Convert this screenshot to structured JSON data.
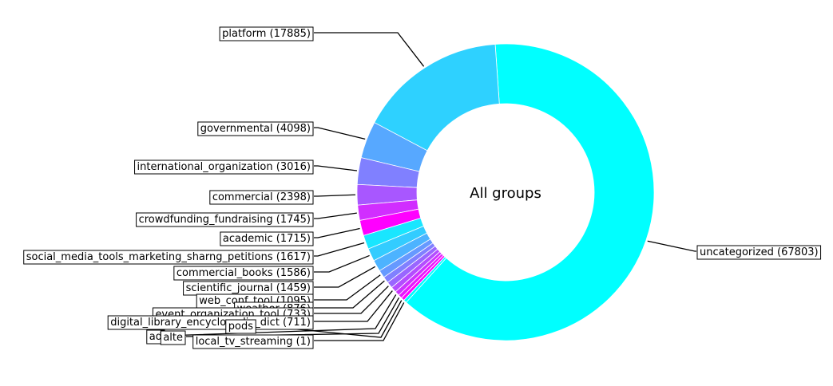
{
  "chart_data": {
    "type": "pie",
    "style": "donut",
    "center_label": "All groups",
    "slices": [
      {
        "label": "uncategorized",
        "value": 67803,
        "color": "#00ffff"
      },
      {
        "label": "platform",
        "value": 17885,
        "color": "#2ed1ff"
      },
      {
        "label": "governmental",
        "value": 4098,
        "color": "#57a8ff"
      },
      {
        "label": "international_organization",
        "value": 3016,
        "color": "#8080ff"
      },
      {
        "label": "commercial",
        "value": 2398,
        "color": "#a857ff"
      },
      {
        "label": "crowdfunding_fundraising",
        "value": 1745,
        "color": "#d12eff"
      },
      {
        "label": "academic",
        "value": 1715,
        "color": "#ff00ff"
      },
      {
        "label": "social_media_tools_marketing_sharng_petitions",
        "value": 1617,
        "color": "#19e6ff"
      },
      {
        "label": "commercial_books",
        "value": 1586,
        "color": "#33ccff"
      },
      {
        "label": "scientific_journal",
        "value": 1459,
        "color": "#4db3ff"
      },
      {
        "label": "web_conf_tool",
        "value": 1095,
        "color": "#6699ff"
      },
      {
        "label": "weather",
        "value": 876,
        "color": "#8080ff"
      },
      {
        "label": "event_organization_tool",
        "value": 733,
        "color": "#9966ff"
      },
      {
        "label": "digital_library_encyclopedia_dict",
        "value": 711,
        "color": "#b34dff"
      },
      {
        "label": "ad",
        "value": null,
        "color": "#cc33ff"
      },
      {
        "label": "alte",
        "value": null,
        "color": "#e619ff"
      },
      {
        "label": "pods",
        "value": null,
        "color": "#ff00ff"
      },
      {
        "label": "local_tv_streaming",
        "value": 1,
        "color": "#00ffff"
      }
    ],
    "label_texts": [
      "uncategorized (67803)",
      "platform (17885)",
      "governmental (4098)",
      "international_organization (3016)",
      "commercial (2398)",
      "crowdfunding_fundraising (1745)",
      "academic (1715)",
      "social_media_tools_marketing_sharng_petitions (1617)",
      "commercial_books (1586)",
      "scientific_journal (1459)",
      "web_conf_tool (1095)",
      "weather (876)",
      "event_organization_tool (733)",
      "digital_library_encyclopedia_dict (711)",
      "ad",
      "alte",
      "pods",
      "local_tv_streaming (1)"
    ]
  }
}
